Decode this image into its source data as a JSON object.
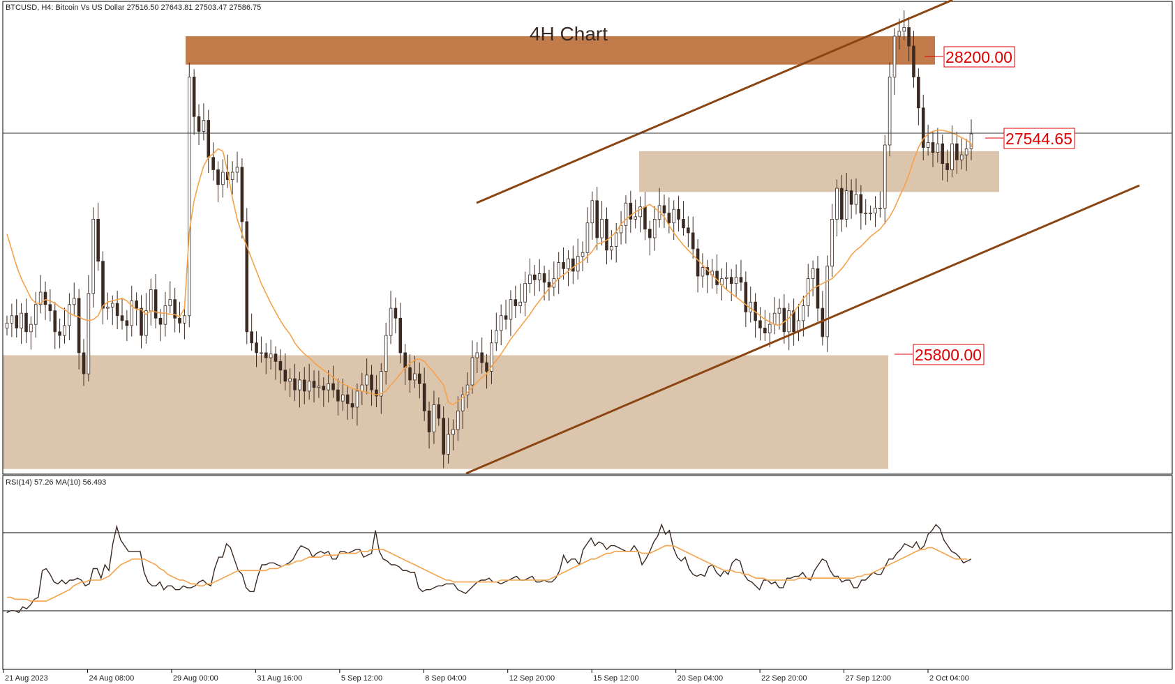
{
  "header": {
    "symbol_info": "BTCUSD, H4:  Bitcoin Vs US Dollar  27516.50 27643.81 27503.47 27586.75",
    "chart_title": "4H Chart"
  },
  "levels": [
    {
      "label": "28200.00",
      "value": 28200.0
    },
    {
      "label": "27544.65",
      "value": 27544.65
    },
    {
      "label": "25800.00",
      "value": 25800.0
    }
  ],
  "colors": {
    "bull_body": "#ffffff",
    "bear_body": "#3b2a22",
    "wick": "#3b2a22",
    "ma_line": "#f5a24a",
    "channel": "#8b4513",
    "resistance_zone": "#c27b4a",
    "zone_light": "#dcc5ad",
    "level_text": "#e00000",
    "rsi_line": "#3b2a22",
    "rsi_ma": "#f5a24a"
  },
  "chart_data": [
    {
      "type": "candlestick",
      "title": "4H Chart",
      "series": [
        {
          "name": "BTCUSD, H4",
          "close": [
            26060,
            26120,
            26020,
            26140,
            25990,
            26050,
            26210,
            26310,
            26210,
            26160,
            25990,
            25960,
            26040,
            26210,
            26260,
            25820,
            25650,
            26300,
            26900,
            26560,
            26180,
            26190,
            26220,
            26120,
            26080,
            26040,
            26240,
            26180,
            25960,
            26160,
            26330,
            26100,
            26050,
            26200,
            26250,
            26100,
            26060,
            26120,
            28050,
            27730,
            27610,
            27700,
            27400,
            27300,
            27180,
            27280,
            27220,
            27280,
            27320,
            26880,
            25990,
            25900,
            25820,
            25820,
            25780,
            25810,
            25750,
            25680,
            25590,
            25610,
            25520,
            25600,
            25510,
            25590,
            25540,
            25550,
            25520,
            25570,
            25520,
            25430,
            25480,
            25410,
            25380,
            25510,
            25560,
            25640,
            25520,
            25470,
            25670,
            25960,
            26180,
            26100,
            25820,
            25700,
            25600,
            25650,
            25570,
            25350,
            25180,
            25400,
            25290,
            25000,
            25160,
            25200,
            25350,
            25480,
            25560,
            25780,
            25820,
            25740,
            25670,
            25900,
            26000,
            26120,
            26090,
            26250,
            26200,
            26230,
            26380,
            26450,
            26410,
            26460,
            26390,
            26350,
            26420,
            26550,
            26500,
            26580,
            26480,
            26600,
            26630,
            26870,
            27050,
            26750,
            26900,
            26650,
            26680,
            26790,
            26850,
            27030,
            26900,
            26920,
            27000,
            26820,
            26750,
            26900,
            27010,
            26950,
            26870,
            26980,
            26900,
            26830,
            26790,
            26660,
            26440,
            26510,
            26450,
            26480,
            26370,
            26420,
            26430,
            26380,
            26430,
            26390,
            26150,
            26230,
            26080,
            26020,
            25980,
            26050,
            26140,
            26180,
            25990,
            26160,
            25990,
            26080,
            26200,
            26420,
            26500,
            26180,
            25950,
            26520,
            26900,
            27150,
            26900,
            27130,
            27020,
            27100,
            26950,
            26950,
            26950,
            26990,
            26990,
            27500,
            28050,
            28380,
            28420,
            28450,
            28300,
            28050,
            27800,
            27480,
            27520,
            27440,
            27510,
            27350,
            27300,
            27510,
            27380,
            27420,
            27470,
            27590
          ]
        },
        {
          "name": "MA",
          "values": [
            26780,
            26650,
            26520,
            26420,
            26340,
            26260,
            26220,
            26220,
            26250,
            26240,
            26220,
            26190,
            26170,
            26140,
            26120,
            26110,
            26090,
            26080,
            26090,
            26120,
            26200,
            26230,
            26240,
            26250,
            26260,
            26240,
            26200,
            26170,
            26170,
            26130,
            26160,
            26150,
            26140,
            26140,
            26130,
            26130,
            26110,
            26180,
            26800,
            27050,
            27200,
            27330,
            27400,
            27430,
            27470,
            27450,
            27280,
            27070,
            26900,
            26780,
            26680,
            26580,
            26480,
            26380,
            26300,
            26220,
            26150,
            26080,
            26020,
            25970,
            25900,
            25850,
            25810,
            25780,
            25740,
            25710,
            25680,
            25650,
            25620,
            25590,
            25570,
            25550,
            25530,
            25520,
            25510,
            25500,
            25490,
            25480,
            25490,
            25510,
            25560,
            25600,
            25650,
            25700,
            25730,
            25760,
            25770,
            25750,
            25700,
            25660,
            25610,
            25560,
            25420,
            25400,
            25430,
            25460,
            25500,
            25540,
            25580,
            25620,
            25650,
            25710,
            25760,
            25810,
            25870,
            25930,
            25980,
            26030,
            26080,
            26130,
            26190,
            26240,
            26290,
            26340,
            26380,
            26420,
            26450,
            26480,
            26510,
            26540,
            26560,
            26600,
            26640,
            26700,
            26710,
            26730,
            26760,
            26800,
            26860,
            26900,
            26930,
            26960,
            26980,
            27000,
            27020,
            26990,
            26960,
            26920,
            26850,
            26790,
            26740,
            26690,
            26650,
            26610,
            26570,
            26530,
            26490,
            26450,
            26410,
            26370,
            26330,
            26300,
            26270,
            26240,
            26210,
            26180,
            26150,
            26120,
            26090,
            26070,
            26050,
            26040,
            26070,
            26100,
            26150,
            26200,
            26260,
            26300,
            26340,
            26360,
            26380,
            26400,
            26420,
            26460,
            26500,
            26550,
            26610,
            26650,
            26680,
            26720,
            26760,
            26790,
            26820,
            26870,
            26920,
            26990,
            27080,
            27160,
            27260,
            27380,
            27480,
            27550,
            27590,
            27610,
            27620,
            27620,
            27610,
            27600,
            27580,
            27560,
            27540,
            27510,
            27490,
            27480,
            27480,
            27490,
            27510
          ]
        }
      ],
      "ylim": [
        24850,
        28650
      ]
    },
    {
      "type": "line",
      "title": "RSI(14) 57.26 MA(10) 56.493",
      "series": [
        {
          "name": "RSI(14)",
          "values": [
            29,
            30,
            30,
            29,
            32,
            31,
            33,
            36,
            37,
            51,
            52,
            49,
            45,
            44,
            46,
            44,
            46,
            46,
            47,
            46,
            43,
            44,
            52,
            52,
            47,
            54,
            51,
            65,
            74,
            67,
            64,
            61,
            61,
            61,
            61,
            50,
            45,
            43,
            43,
            45,
            41,
            43,
            43,
            41,
            41,
            43,
            42,
            42,
            43,
            45,
            46,
            44,
            43,
            52,
            58,
            58,
            65,
            63,
            57,
            51,
            49,
            42,
            40,
            40,
            48,
            54,
            54,
            55,
            55,
            54,
            53,
            54,
            55,
            57,
            61,
            64,
            63,
            62,
            58,
            60,
            61,
            60,
            61,
            57,
            57,
            61,
            61,
            60,
            61,
            62,
            62,
            58,
            59,
            60,
            72,
            61,
            57,
            56,
            54,
            54,
            53,
            51,
            51,
            50,
            50,
            42,
            40,
            41,
            41,
            42,
            43,
            43,
            44,
            44,
            44,
            41,
            40,
            39,
            41,
            43,
            45,
            46,
            46,
            47,
            45,
            45,
            44,
            45,
            46,
            47,
            48,
            46,
            46,
            47,
            48,
            45,
            45,
            46,
            45,
            45,
            47,
            51,
            59,
            55,
            57,
            57,
            54,
            62,
            65,
            68,
            64,
            66,
            65,
            62,
            64,
            64,
            63,
            62,
            61,
            61,
            64,
            61,
            54,
            57,
            61,
            66,
            69,
            75,
            70,
            72,
            63,
            58,
            56,
            58,
            52,
            49,
            48,
            49,
            48,
            53,
            54,
            50,
            48,
            51,
            49,
            55,
            57,
            56,
            49,
            46,
            45,
            43,
            41,
            46,
            46,
            44,
            45,
            42,
            42,
            47,
            47,
            48,
            48,
            50,
            47,
            46,
            51,
            54,
            57,
            56,
            51,
            48,
            48,
            45,
            46,
            46,
            42,
            42,
            46,
            46,
            48,
            50,
            49,
            49,
            53,
            57,
            57,
            60,
            62,
            65,
            64,
            63,
            66,
            62,
            64,
            70,
            72,
            75,
            73,
            67,
            64,
            61,
            60,
            58,
            55,
            56,
            57
          ]
        },
        {
          "name": "MA(10)",
          "values": [
            37,
            37,
            36,
            36,
            36,
            36,
            35,
            35,
            35,
            35,
            35,
            36,
            37,
            38,
            39,
            40,
            41,
            43,
            44,
            45,
            45,
            46,
            46,
            46,
            46,
            47,
            48,
            50,
            52,
            54,
            55,
            56,
            57,
            57,
            57,
            57,
            56,
            55,
            54,
            52,
            51,
            49,
            48,
            47,
            46,
            46,
            45,
            44,
            44,
            43,
            43,
            44,
            44,
            45,
            46,
            47,
            48,
            49,
            50,
            51,
            51,
            51,
            51,
            51,
            51,
            51,
            51,
            52,
            52,
            52,
            53,
            54,
            54,
            55,
            56,
            56,
            57,
            58,
            58,
            58,
            58,
            59,
            59,
            59,
            59,
            60,
            60,
            60,
            60,
            60,
            61,
            61,
            61,
            62,
            62,
            62,
            62,
            61,
            60,
            59,
            58,
            57,
            56,
            55,
            54,
            53,
            52,
            51,
            50,
            49,
            48,
            47,
            46,
            46,
            45,
            45,
            45,
            45,
            45,
            45,
            45,
            45,
            45,
            45,
            45,
            45,
            46,
            46,
            46,
            46,
            46,
            46,
            46,
            46,
            46,
            46,
            46,
            46,
            46,
            47,
            48,
            49,
            50,
            51,
            52,
            53,
            54,
            55,
            56,
            57,
            57,
            58,
            59,
            60,
            60,
            61,
            61,
            61,
            61,
            61,
            61,
            61,
            60,
            60,
            60,
            61,
            62,
            63,
            64,
            64,
            64,
            63,
            62,
            61,
            60,
            59,
            58,
            57,
            56,
            55,
            54,
            53,
            52,
            51,
            51,
            51,
            50,
            50,
            49,
            49,
            48,
            47,
            47,
            47,
            46,
            46,
            46,
            46,
            46,
            46,
            46,
            46,
            47,
            47,
            47,
            47,
            47,
            47,
            47,
            47,
            47,
            47,
            47,
            47,
            47,
            47,
            47,
            48,
            48,
            49,
            49,
            50,
            51,
            52,
            53,
            54,
            55,
            56,
            57,
            58,
            59,
            60,
            61,
            62,
            62,
            63,
            63,
            62,
            61,
            60,
            59,
            58,
            57,
            57,
            57,
            57
          ]
        }
      ],
      "ylim": [
        0,
        100
      ],
      "levels": [
        30,
        70
      ]
    }
  ],
  "x_axis": {
    "ticks": [
      "21 Aug 2023",
      "24 Aug 08:00",
      "29 Aug 00:00",
      "31 Aug 16:00",
      "5 Sep 12:00",
      "8 Sep 04:00",
      "12 Sep 20:00",
      "15 Sep 12:00",
      "20 Sep 04:00",
      "22 Sep 20:00",
      "27 Sep 12:00",
      "2 Oct 04:00"
    ]
  },
  "rsi_label": "RSI(14) 57.26 MA(10) 56.493"
}
